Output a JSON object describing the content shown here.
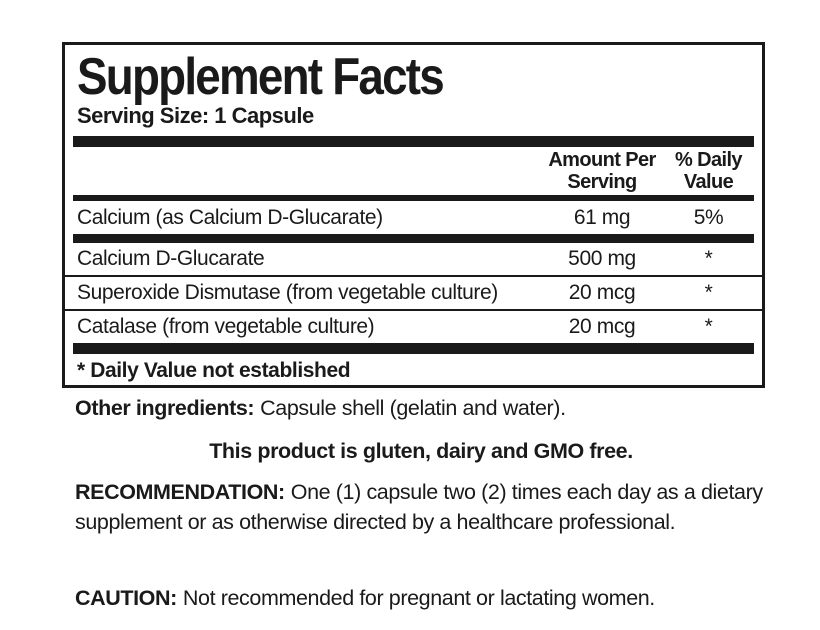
{
  "supplement_facts": {
    "title": "Supplement Facts",
    "serving_size": "Serving Size: 1 Capsule",
    "header": {
      "amount": "Amount Per Serving",
      "daily_value": "% Daily Value"
    },
    "rows": [
      {
        "name": "Calcium (as Calcium D-Glucarate)",
        "amount": "61 mg",
        "daily_value": "5%"
      },
      {
        "name": "Calcium D-Glucarate",
        "amount": "500 mg",
        "daily_value": "*"
      },
      {
        "name": "Superoxide Dismutase (from vegetable culture)",
        "amount": "20 mcg",
        "daily_value": "*"
      },
      {
        "name": "Catalase (from vegetable culture)",
        "amount": "20 mcg",
        "daily_value": "*"
      }
    ],
    "footnote": "* Daily Value not established"
  },
  "other_ingredients": {
    "label": "Other ingredients:",
    "text": "Capsule shell (gelatin and water)."
  },
  "claim": "This product is gluten, dairy and GMO free.",
  "recommendation": {
    "label": "RECOMMENDATION:",
    "text": "One (1) capsule two (2) times each day as a dietary supplement or as otherwise directed by a healthcare professional."
  },
  "caution": {
    "label": "CAUTION:",
    "text": "Not recommended for pregnant or lactating women."
  },
  "colors": {
    "ink": "#1a1a1a",
    "background": "#ffffff"
  }
}
